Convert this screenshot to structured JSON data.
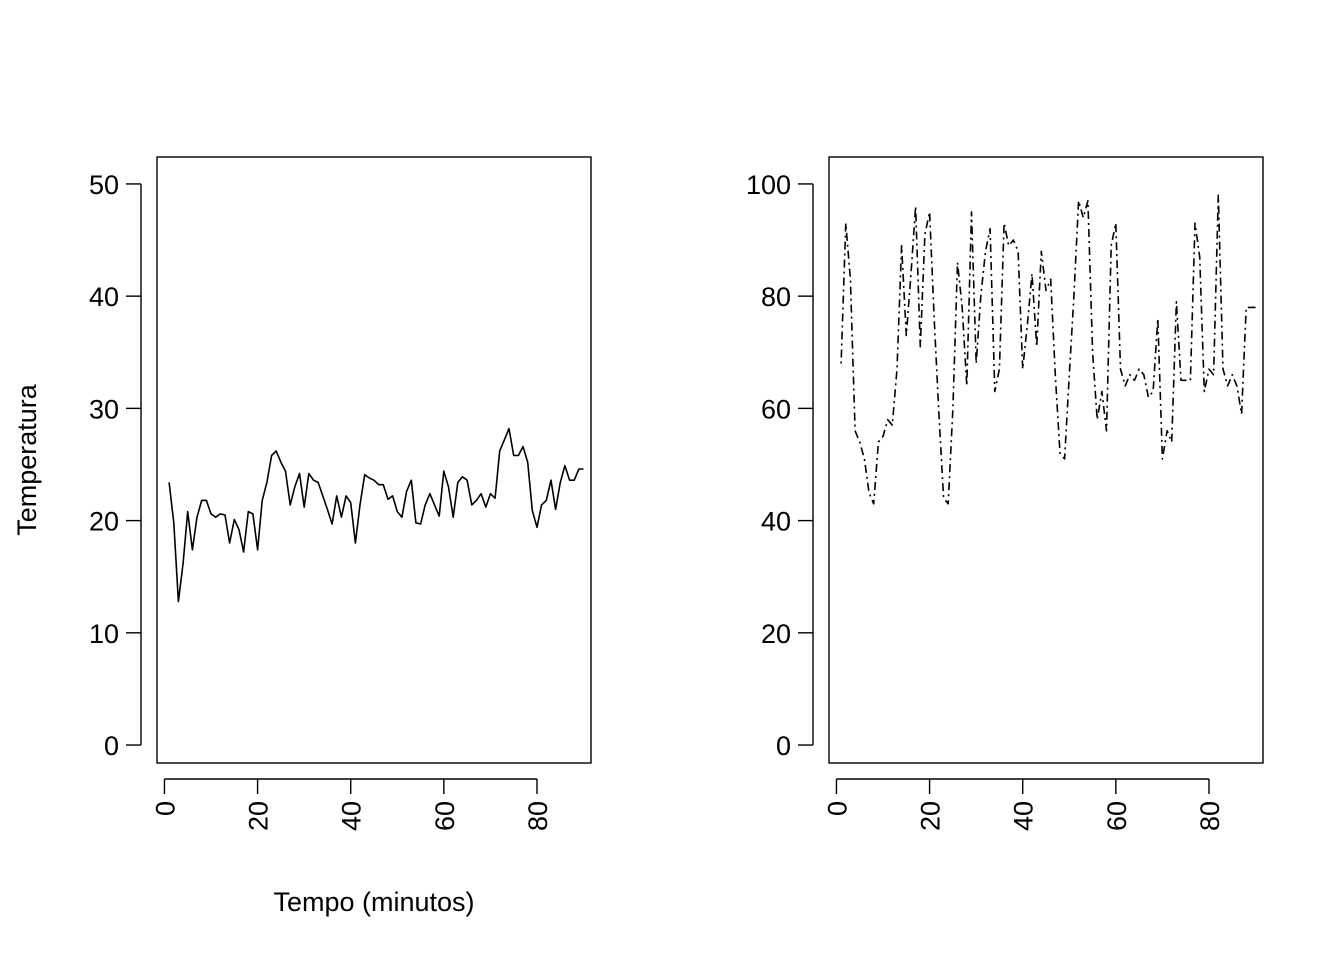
{
  "chart_data": [
    {
      "type": "line",
      "title": "",
      "xlabel": "Tempo (minutos)",
      "ylabel": "Temperatura",
      "xlim": [
        -1.6,
        91.6
      ],
      "ylim": [
        -1.6,
        52.4
      ],
      "xticks": [
        0,
        20,
        40,
        60,
        80
      ],
      "yticks": [
        0,
        10,
        20,
        30,
        40,
        50
      ],
      "xtick_labels": [
        "0",
        "20",
        "40",
        "60",
        "80"
      ],
      "ytick_labels": [
        "0",
        "10",
        "20",
        "30",
        "40",
        "50"
      ],
      "line_style": "solid",
      "color": "#000000",
      "grid": false,
      "series": [
        {
          "x": [
            1,
            2,
            3,
            4,
            5,
            6,
            7,
            8,
            9,
            10,
            11,
            12,
            13,
            14,
            15,
            16,
            17,
            18,
            19,
            20,
            21,
            22,
            23,
            24,
            25,
            26,
            27,
            28,
            29,
            30,
            31,
            32,
            33,
            34,
            35,
            36,
            37,
            38,
            39,
            40,
            41,
            42,
            43,
            44,
            45,
            46,
            47,
            48,
            49,
            50,
            51,
            52,
            53,
            54,
            55,
            56,
            57,
            58,
            59,
            60,
            61,
            62,
            63,
            64,
            65,
            66,
            67,
            68,
            69,
            70,
            71,
            72,
            73,
            74,
            75,
            76,
            77,
            78,
            79,
            80,
            81,
            82,
            83,
            84,
            85,
            86,
            87,
            88,
            89,
            90
          ],
          "y": [
            23.4,
            19.8,
            12.8,
            16.2,
            20.8,
            17.4,
            20.3,
            21.8,
            21.8,
            20.6,
            20.3,
            20.6,
            20.5,
            18.0,
            20.1,
            19.2,
            17.2,
            20.8,
            20.6,
            17.4,
            21.8,
            23.4,
            25.8,
            26.2,
            25.2,
            24.4,
            21.4,
            23.0,
            24.2,
            21.2,
            24.2,
            23.6,
            23.4,
            22.2,
            21.0,
            19.7,
            22.2,
            20.3,
            22.2,
            21.6,
            18.0,
            21.4,
            24.1,
            23.8,
            23.6,
            23.2,
            23.2,
            21.9,
            22.2,
            20.8,
            20.3,
            22.6,
            23.6,
            19.8,
            19.7,
            21.4,
            22.4,
            21.4,
            20.4,
            24.4,
            23.0,
            20.3,
            23.4,
            23.9,
            23.6,
            21.4,
            21.8,
            22.4,
            21.2,
            22.4,
            22.0,
            26.2,
            27.2,
            28.2,
            25.8,
            25.8,
            26.6,
            25.2,
            20.9,
            19.4,
            21.4,
            21.8,
            23.6,
            21.0,
            23.4,
            24.9,
            23.6,
            23.6,
            24.6,
            24.6
          ]
        }
      ]
    },
    {
      "type": "line",
      "title": "",
      "xlabel": "",
      "ylabel": "",
      "xlim": [
        -1.6,
        91.6
      ],
      "ylim": [
        -3.2,
        104.8
      ],
      "xticks": [
        0,
        20,
        40,
        60,
        80
      ],
      "yticks": [
        0,
        20,
        40,
        60,
        80,
        100
      ],
      "xtick_labels": [
        "0",
        "20",
        "40",
        "60",
        "80"
      ],
      "ytick_labels": [
        "0",
        "20",
        "40",
        "60",
        "80",
        "100"
      ],
      "line_style": "dot-dash",
      "color": "#000000",
      "grid": false,
      "series": [
        {
          "x": [
            1,
            2,
            3,
            4,
            5,
            6,
            7,
            8,
            9,
            10,
            11,
            12,
            13,
            14,
            15,
            16,
            17,
            18,
            19,
            20,
            21,
            22,
            23,
            24,
            25,
            26,
            27,
            28,
            29,
            30,
            31,
            32,
            33,
            34,
            35,
            36,
            37,
            38,
            39,
            40,
            41,
            42,
            43,
            44,
            45,
            46,
            47,
            48,
            49,
            50,
            51,
            52,
            53,
            54,
            55,
            56,
            57,
            58,
            59,
            60,
            61,
            62,
            63,
            64,
            65,
            66,
            67,
            68,
            69,
            70,
            71,
            72,
            73,
            74,
            75,
            76,
            77,
            78,
            79,
            80,
            81,
            82,
            83,
            84,
            85,
            86,
            87,
            88,
            89,
            90
          ],
          "y": [
            68,
            93,
            83,
            56,
            54,
            51,
            45,
            43,
            54,
            55,
            58,
            57,
            67,
            89,
            73,
            84,
            96,
            71,
            91,
            95,
            76,
            59,
            44,
            43,
            60,
            86,
            78,
            64,
            95,
            68,
            80,
            88,
            92,
            63,
            67,
            93,
            89,
            90,
            88,
            67,
            75,
            84,
            71,
            88,
            81,
            83,
            66,
            52,
            51,
            66,
            80,
            97,
            94,
            97,
            70,
            58,
            63,
            56,
            89,
            93,
            67,
            64,
            66,
            65,
            67,
            66,
            62,
            63,
            76,
            51,
            56,
            54,
            79,
            65,
            65,
            65,
            93,
            87,
            63,
            67,
            66,
            98,
            67,
            64,
            66,
            64,
            59,
            78,
            78,
            78
          ]
        }
      ]
    }
  ]
}
